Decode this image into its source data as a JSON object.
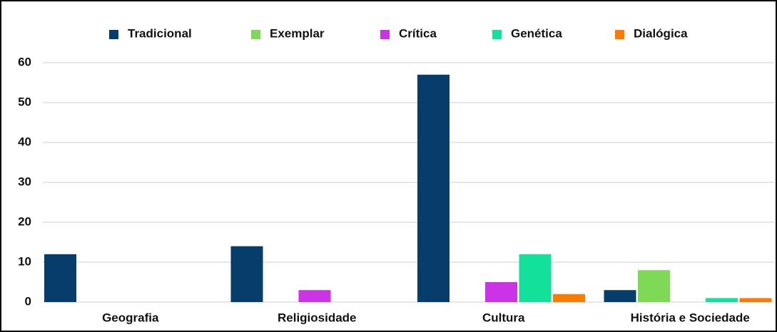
{
  "chart_data": {
    "type": "bar",
    "categories": [
      "Geografia",
      "Religiosidade",
      "Cultura",
      "História e Sociedade"
    ],
    "series": [
      {
        "name": "Tradicional",
        "color": "#073d6b",
        "values": [
          12,
          14,
          57,
          3
        ]
      },
      {
        "name": "Exemplar",
        "color": "#7ed957",
        "values": [
          0,
          0,
          0,
          8
        ]
      },
      {
        "name": "Crítica",
        "color": "#cc33e6",
        "values": [
          0,
          3,
          5,
          0
        ]
      },
      {
        "name": "Genética",
        "color": "#13e19b",
        "values": [
          0,
          0,
          12,
          1
        ]
      },
      {
        "name": "Dialógica",
        "color": "#ff7a00",
        "values": [
          0,
          0,
          2,
          1
        ]
      }
    ],
    "ylim": [
      0,
      60
    ],
    "yticks": [
      0,
      10,
      20,
      30,
      40,
      50,
      60
    ],
    "grid": true,
    "legend": "top"
  }
}
